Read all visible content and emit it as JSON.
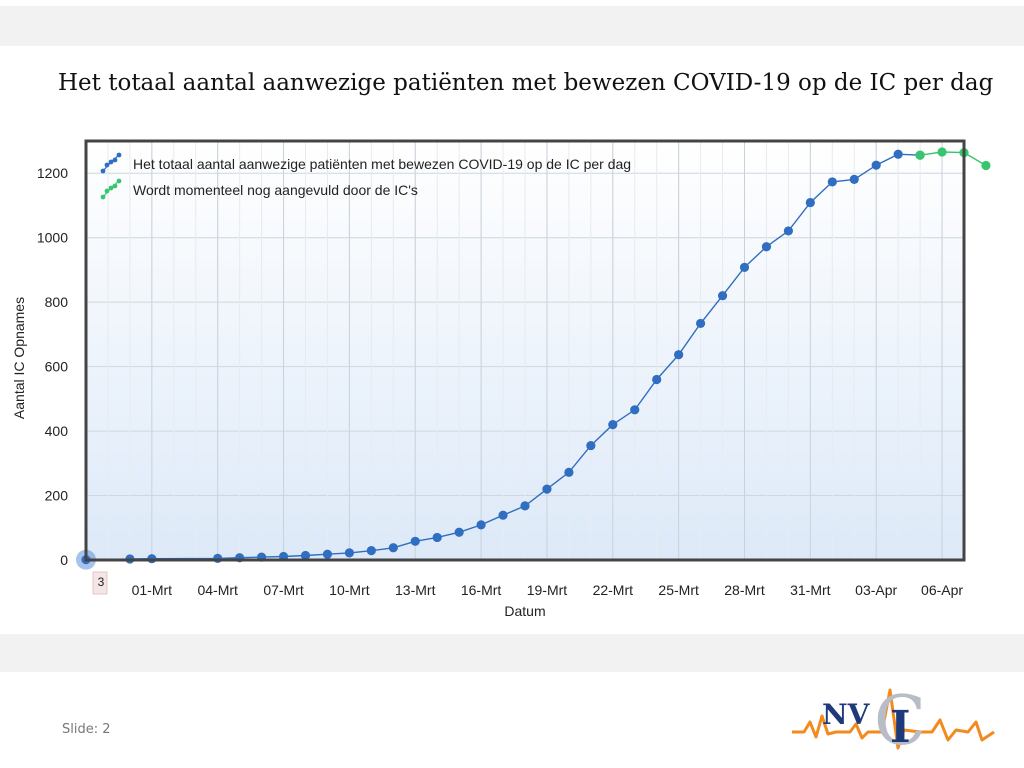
{
  "slide": {
    "title": "Het totaal aantal aanwezige patiënten met bewezen COVID-19 op de IC per dag",
    "number_label": "Slide: 2"
  },
  "logo": {
    "text_left": "NV",
    "text_right": "C",
    "text_center": "I",
    "colors": {
      "navy": "#1f3a7a",
      "orange": "#f28a1e",
      "silver": "#b8bcc6"
    }
  },
  "chart_data": {
    "type": "line",
    "title": "",
    "xlabel": "Datum",
    "ylabel": "Aantal IC Opnames",
    "ylim": [
      0,
      1300
    ],
    "y_ticks": [
      0,
      200,
      400,
      600,
      800,
      1000,
      1200
    ],
    "x_range": [
      "27-Feb",
      "07-Apr"
    ],
    "x_ticks": [
      "01-Mrt",
      "04-Mrt",
      "07-Mrt",
      "10-Mrt",
      "13-Mrt",
      "16-Mrt",
      "19-Mrt",
      "22-Mrt",
      "25-Mrt",
      "28-Mrt",
      "31-Mrt",
      "03-Apr",
      "06-Apr"
    ],
    "highlight_label": "3",
    "legend_position": "top-left",
    "grid": true,
    "series": [
      {
        "name": "Het totaal aantal aanwezige patiënten met bewezen COVID-19 op de IC per dag",
        "color": "#2f6ec0",
        "points": [
          {
            "x": "27-Feb",
            "y": 1
          },
          {
            "x": "29-Feb",
            "y": 3
          },
          {
            "x": "01-Mrt",
            "y": 4
          },
          {
            "x": "04-Mrt",
            "y": 5
          },
          {
            "x": "05-Mrt",
            "y": 7
          },
          {
            "x": "06-Mrt",
            "y": 9
          },
          {
            "x": "07-Mrt",
            "y": 11
          },
          {
            "x": "08-Mrt",
            "y": 14
          },
          {
            "x": "09-Mrt",
            "y": 18
          },
          {
            "x": "10-Mrt",
            "y": 22
          },
          {
            "x": "11-Mrt",
            "y": 29
          },
          {
            "x": "12-Mrt",
            "y": 38
          },
          {
            "x": "13-Mrt",
            "y": 58
          },
          {
            "x": "14-Mrt",
            "y": 70
          },
          {
            "x": "15-Mrt",
            "y": 86
          },
          {
            "x": "16-Mrt",
            "y": 109
          },
          {
            "x": "17-Mrt",
            "y": 139
          },
          {
            "x": "18-Mrt",
            "y": 168
          },
          {
            "x": "19-Mrt",
            "y": 220
          },
          {
            "x": "20-Mrt",
            "y": 272
          },
          {
            "x": "21-Mrt",
            "y": 355
          },
          {
            "x": "22-Mrt",
            "y": 420
          },
          {
            "x": "23-Mrt",
            "y": 466
          },
          {
            "x": "24-Mrt",
            "y": 560
          },
          {
            "x": "25-Mrt",
            "y": 637
          },
          {
            "x": "26-Mrt",
            "y": 734
          },
          {
            "x": "27-Mrt",
            "y": 820
          },
          {
            "x": "28-Mrt",
            "y": 908
          },
          {
            "x": "29-Mrt",
            "y": 972
          },
          {
            "x": "30-Mrt",
            "y": 1021
          },
          {
            "x": "31-Mrt",
            "y": 1109
          },
          {
            "x": "01-Apr",
            "y": 1173
          },
          {
            "x": "02-Apr",
            "y": 1181
          },
          {
            "x": "03-Apr",
            "y": 1225
          },
          {
            "x": "04-Apr",
            "y": 1259
          },
          {
            "x": "05-Apr",
            "y": 1256
          }
        ]
      },
      {
        "name": "Wordt momenteel nog aangevuld door de IC's",
        "color": "#37c66f",
        "points": [
          {
            "x": "05-Apr",
            "y": 1256
          },
          {
            "x": "06-Apr",
            "y": 1266
          },
          {
            "x": "07-Apr",
            "y": 1264
          },
          {
            "x": "08-Apr",
            "y": 1224
          }
        ]
      }
    ]
  }
}
